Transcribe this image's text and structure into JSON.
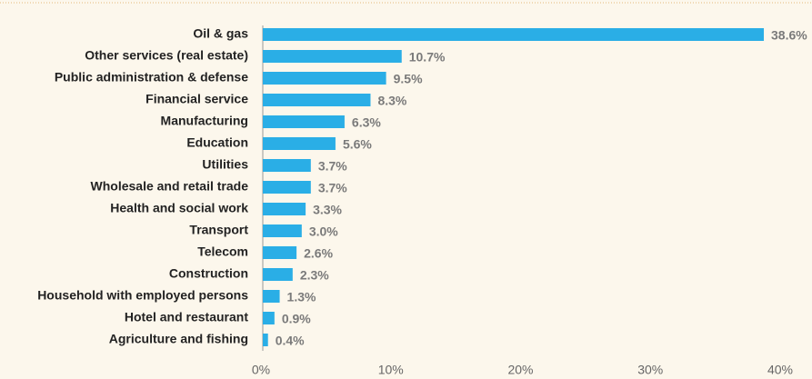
{
  "chart_data": {
    "type": "bar",
    "orientation": "horizontal",
    "categories": [
      "Oil & gas",
      "Other services (real estate)",
      "Public administration & defense",
      "Financial service",
      "Manufacturing",
      "Education",
      "Utilities",
      "Wholesale and retail trade",
      "Health and social work",
      "Transport",
      "Telecom",
      "Construction",
      "Household with employed persons",
      "Hotel and restaurant",
      "Agriculture and fishing"
    ],
    "values": [
      38.6,
      10.7,
      9.5,
      8.3,
      6.3,
      5.6,
      3.7,
      3.7,
      3.3,
      3.0,
      2.6,
      2.3,
      1.3,
      0.9,
      0.4
    ],
    "value_labels": [
      "38.6%",
      "10.7%",
      "9.5%",
      "8.3%",
      "6.3%",
      "5.6%",
      "3.7%",
      "3.7%",
      "3.3%",
      "3.0%",
      "2.6%",
      "2.3%",
      "1.3%",
      "0.9%",
      "0.4%"
    ],
    "color": "#2aaee6",
    "xlim": [
      0,
      40
    ],
    "xticks": [
      {
        "value": 0,
        "label": "0%"
      },
      {
        "value": 10,
        "label": "10%"
      },
      {
        "value": 20,
        "label": "20%"
      },
      {
        "value": 30,
        "label": "30%"
      },
      {
        "value": 40,
        "label": "40%"
      }
    ],
    "grid": false
  }
}
